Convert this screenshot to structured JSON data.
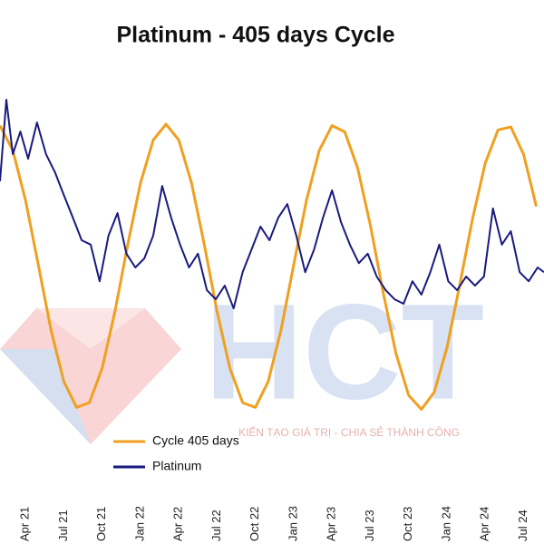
{
  "chart_data": {
    "type": "line",
    "title": "Platinum - 405 days Cycle",
    "annotations": [
      "HCT",
      "KIẾN TẠO GIÁ TRỊ - CHIA SẺ THÀNH CÔNG"
    ],
    "xlim": [
      1,
      43.6
    ],
    "ylim": [
      0,
      100
    ],
    "xticks": [
      {
        "value": 3,
        "label": "Apr 21"
      },
      {
        "value": 6,
        "label": "Jul 21"
      },
      {
        "value": 9,
        "label": "Oct 21"
      },
      {
        "value": 12,
        "label": "Jan 22"
      },
      {
        "value": 15,
        "label": "Apr 22"
      },
      {
        "value": 18,
        "label": "Jul 22"
      },
      {
        "value": 21,
        "label": "Oct 22"
      },
      {
        "value": 24,
        "label": "Jan 23"
      },
      {
        "value": 27,
        "label": "Apr 23"
      },
      {
        "value": 30,
        "label": "Jul 23"
      },
      {
        "value": 33,
        "label": "Oct 23"
      },
      {
        "value": 36,
        "label": "Jan 24"
      },
      {
        "value": 39,
        "label": "Apr 24"
      },
      {
        "value": 42,
        "label": "Jul 24"
      }
    ],
    "legend": "bottom-left",
    "series": [
      {
        "name": "Cycle 405 days",
        "color": "#f0a020",
        "x": [
          1,
          2,
          3,
          4,
          5,
          6,
          7,
          8,
          9,
          10,
          11,
          12,
          13,
          14,
          15,
          16,
          17,
          18,
          19,
          20,
          21,
          22,
          23,
          24,
          25,
          26,
          27,
          28,
          29,
          30,
          31,
          32,
          33,
          34,
          35,
          36,
          37,
          38,
          39,
          40,
          41,
          42,
          43
        ],
        "values": [
          89.6,
          82.2,
          67.3,
          48.0,
          28.6,
          13.3,
          5.6,
          7.0,
          17.3,
          34.2,
          54.0,
          72.4,
          85.3,
          90.0,
          85.3,
          72.4,
          54.0,
          34.2,
          17.3,
          7.0,
          5.6,
          13.3,
          28.6,
          48.0,
          67.3,
          82.2,
          89.6,
          87.7,
          77.0,
          59.9,
          40.0,
          21.8,
          9.2,
          5.0,
          10.1,
          23.4,
          42.0,
          61.7,
          78.4,
          88.3,
          89.2,
          81.0,
          65.5
        ]
      },
      {
        "name": "Platinum",
        "color": "#1a1a80",
        "x": [
          1.0,
          1.5,
          2.0,
          2.6,
          3.2,
          3.9,
          4.6,
          5.3,
          6.0,
          6.7,
          7.4,
          8.1,
          8.8,
          9.5,
          10.2,
          10.9,
          11.6,
          12.3,
          13.0,
          13.7,
          14.4,
          15.1,
          15.8,
          16.5,
          17.2,
          17.9,
          18.6,
          19.3,
          20.0,
          20.7,
          21.4,
          22.1,
          22.8,
          23.5,
          24.2,
          24.9,
          25.6,
          26.3,
          27.0,
          27.7,
          28.4,
          29.1,
          29.8,
          30.5,
          31.2,
          31.9,
          32.6,
          33.3,
          34.0,
          34.7,
          35.4,
          36.1,
          36.8,
          37.5,
          38.2,
          38.9,
          39.6,
          40.3,
          41.0,
          41.7,
          42.4,
          43.1,
          43.6
        ],
        "values": [
          73.0,
          97.3,
          81.1,
          87.8,
          79.7,
          90.5,
          81.1,
          75.7,
          68.9,
          62.2,
          55.4,
          54.1,
          43.2,
          56.8,
          63.5,
          51.4,
          47.3,
          50.0,
          56.8,
          71.6,
          62.2,
          54.1,
          47.3,
          51.4,
          40.5,
          37.8,
          41.9,
          35.1,
          45.9,
          52.7,
          59.5,
          55.4,
          62.2,
          66.2,
          56.8,
          45.9,
          52.7,
          62.2,
          70.3,
          60.8,
          54.1,
          48.6,
          51.4,
          44.6,
          40.5,
          37.8,
          36.5,
          43.2,
          39.2,
          45.9,
          54.1,
          43.2,
          40.5,
          44.6,
          41.9,
          44.6,
          64.9,
          54.1,
          58.1,
          45.9,
          43.2,
          47.3,
          45.9
        ]
      }
    ]
  }
}
